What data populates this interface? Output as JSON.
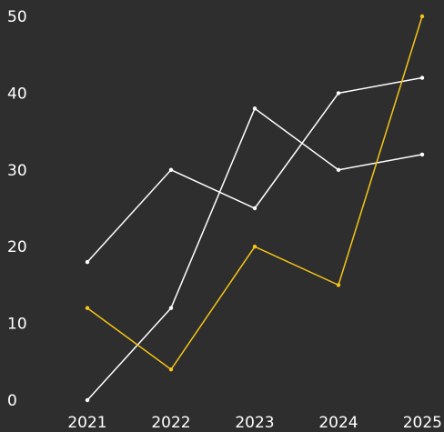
{
  "chart_data": {
    "type": "line",
    "title": "",
    "xlabel": "",
    "ylabel": "",
    "x": [
      "2021",
      "2022",
      "2023",
      "2024",
      "2025"
    ],
    "ylim": [
      0,
      50
    ],
    "yticks": [
      0,
      10,
      20,
      30,
      40,
      50
    ],
    "grid": false,
    "series": [
      {
        "color": "#ffffff",
        "values": [
          18,
          30,
          25,
          40,
          42
        ]
      },
      {
        "color": "#ffffff",
        "values": [
          0,
          12,
          38,
          30,
          32
        ]
      },
      {
        "color": "#f5c518",
        "values": [
          12,
          4,
          20,
          15,
          50
        ]
      }
    ]
  },
  "colors": {
    "background": "#2e2e2e",
    "text": "#ffffff"
  }
}
